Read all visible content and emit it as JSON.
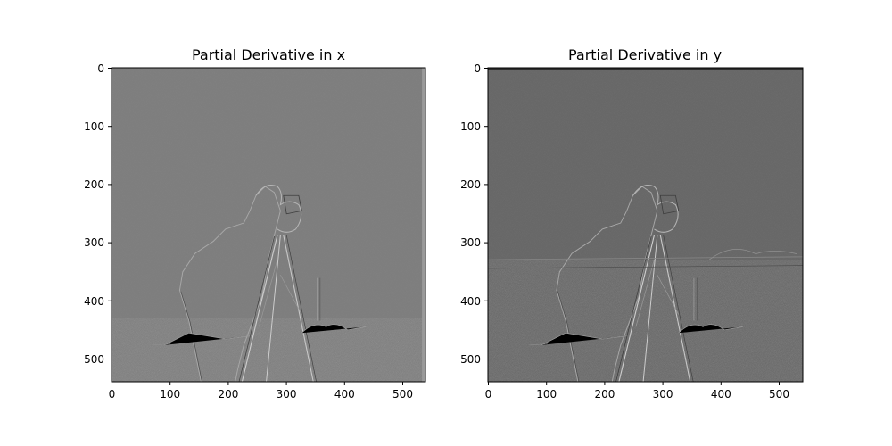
{
  "figure": {
    "panels": [
      {
        "title": "Partial Derivative in x",
        "image_shape": [
          540,
          540
        ],
        "background_gray": "#7c7c7c",
        "xticks": [
          0,
          100,
          200,
          300,
          400,
          500
        ],
        "yticks": [
          0,
          100,
          200,
          300,
          400,
          500
        ],
        "content": "x-gradient of grayscale photo of a cameraman with tripod camera"
      },
      {
        "title": "Partial Derivative in y",
        "image_shape": [
          540,
          540
        ],
        "background_gray": "#646464",
        "xticks": [
          0,
          100,
          200,
          300,
          400,
          500
        ],
        "yticks": [
          0,
          100,
          200,
          300,
          400,
          500
        ],
        "content": "y-gradient of grayscale photo of a cameraman with tripod camera"
      }
    ]
  }
}
